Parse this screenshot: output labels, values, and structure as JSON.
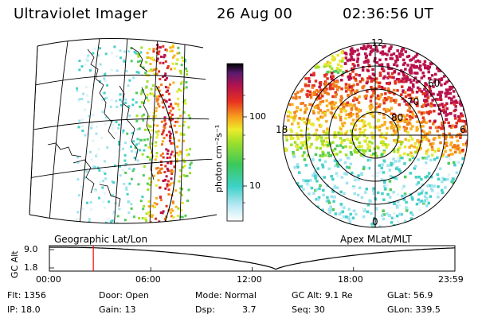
{
  "header": {
    "instrument": "Ultraviolet Imager",
    "date": "26 Aug 00",
    "time": "02:36:56 UT"
  },
  "colorbar": {
    "unit_label": "photon cm⁻²s⁻¹",
    "ticks": [
      "100",
      "10"
    ]
  },
  "left_map": {
    "caption": "Geographic Lat/Lon"
  },
  "right_map": {
    "caption": "Apex MLat/MLT",
    "mlt_labels": [
      "12",
      "18",
      "6",
      "0"
    ],
    "mlat_labels": [
      "60",
      "70",
      "80"
    ]
  },
  "altitude_plot": {
    "ylabel": "GC Alt",
    "yticks": [
      "9.0",
      "1.8"
    ],
    "xticks": [
      "00:00",
      "06:00",
      "12:00",
      "18:00",
      "23:59"
    ],
    "current_time_marker_hours": 2.6,
    "marker_color": "#ff0000"
  },
  "status": {
    "flt": "Flt: 1356",
    "ip": "IP: 18.0",
    "door": "Door: Open",
    "gain": "Gain: 13",
    "mode": "Mode: Normal",
    "dsp_label": "Dsp:",
    "dsp_value": "3.7",
    "gc_alt": "GC Alt: 9.1 Re",
    "seq": "Seq: 30",
    "glat": "GLat:  56.9",
    "glon": "GLon: 339.5"
  }
}
